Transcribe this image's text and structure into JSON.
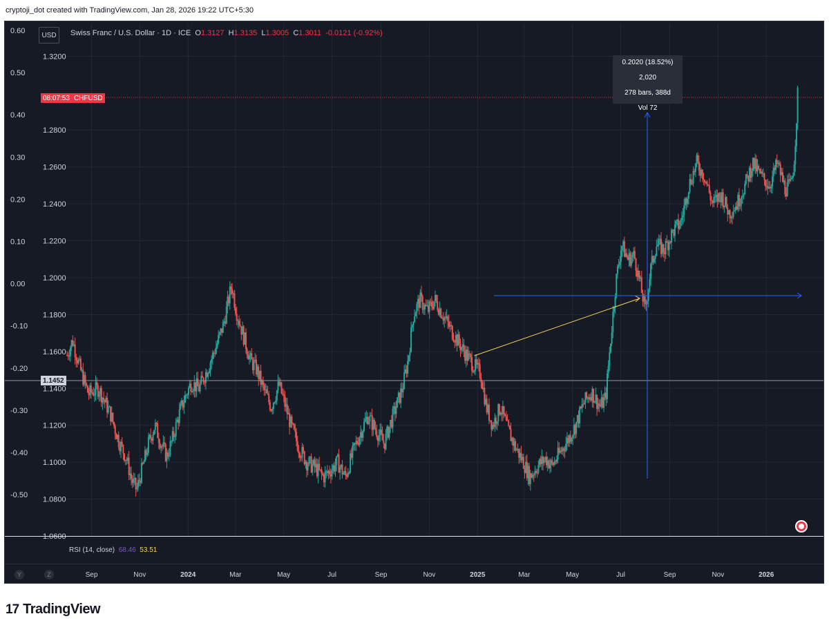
{
  "header": {
    "caption": "cryptoji_dot created with TradingView.com, Jan 28, 2026 19:22 UTC+5:30"
  },
  "legend": {
    "currency": "USD",
    "symbol": "Swiss Franc / U.S. Dollar · 1D · ICE",
    "o_label": "O",
    "open": "1.3127",
    "h_label": "H",
    "high": "1.3135",
    "l_label": "L",
    "low": "1.3005",
    "c_label": "C",
    "close": "1.3011",
    "change": "-0.0121 (-0.92%)"
  },
  "tags": {
    "countdown": "08:07:53",
    "ticker": "CHFUSD",
    "crosshair_price": "1.1452"
  },
  "measure_tooltip": {
    "line1": "0.2020 (18.52%) 2,020",
    "line2": "278 bars, 388d",
    "line3": "Vol 72"
  },
  "rsi_legend": {
    "label": "RSI (14, close)",
    "value1": "68.46",
    "value2": "53.51"
  },
  "time_axis_buttons": [
    "Y",
    "Z"
  ],
  "brand": {
    "logo": "17",
    "name": "TradingView"
  },
  "colors": {
    "background": "#161a25",
    "grid": "#242833",
    "up": "#26a69a",
    "down": "#ef5350",
    "trendline": "#f7d55b",
    "measure": "#2962ff",
    "current_price_line": "#f23645"
  },
  "chart_data": {
    "type": "candlestick",
    "title": "Swiss Franc / U.S. Dollar · 1D · ICE",
    "left_ticks": [
      "0.60",
      "0.50",
      "0.40",
      "0.30",
      "0.20",
      "0.10",
      "0.00",
      "-0.10",
      "-0.20",
      "-0.30",
      "-0.40",
      "-0.50"
    ],
    "left_tick_values": [
      0.6,
      0.5,
      0.4,
      0.3,
      0.2,
      0.1,
      0.0,
      -0.1,
      -0.2,
      -0.3,
      -0.4,
      -0.5
    ],
    "price_ticks": [
      "1.3200",
      "1.2800",
      "1.2600",
      "1.2400",
      "1.2200",
      "1.2000",
      "1.1800",
      "1.1600",
      "1.1400",
      "1.1200",
      "1.1000",
      "1.0800",
      "1.0600"
    ],
    "price_tick_values": [
      1.32,
      1.28,
      1.26,
      1.24,
      1.22,
      1.2,
      1.18,
      1.16,
      1.14,
      1.12,
      1.1,
      1.08,
      1.06
    ],
    "ylim": [
      1.06,
      1.3265
    ],
    "xlim": [
      "2023-08-01",
      "2026-02-10"
    ],
    "time_ticks": [
      {
        "label": "Sep",
        "date": "2023-09-01",
        "bold": false
      },
      {
        "label": "Nov",
        "date": "2023-11-01",
        "bold": false
      },
      {
        "label": "2024",
        "date": "2024-01-01",
        "bold": true
      },
      {
        "label": "Mar",
        "date": "2024-03-01",
        "bold": false
      },
      {
        "label": "May",
        "date": "2024-05-01",
        "bold": false
      },
      {
        "label": "Jul",
        "date": "2024-07-01",
        "bold": false
      },
      {
        "label": "Sep",
        "date": "2024-09-01",
        "bold": false
      },
      {
        "label": "Nov",
        "date": "2024-11-01",
        "bold": false
      },
      {
        "label": "2025",
        "date": "2025-01-01",
        "bold": true
      },
      {
        "label": "Mar",
        "date": "2025-03-01",
        "bold": false
      },
      {
        "label": "May",
        "date": "2025-05-01",
        "bold": false
      },
      {
        "label": "Jul",
        "date": "2025-07-01",
        "bold": false
      },
      {
        "label": "Sep",
        "date": "2025-09-01",
        "bold": false
      },
      {
        "label": "Nov",
        "date": "2025-11-01",
        "bold": false
      },
      {
        "label": "2026",
        "date": "2026-01-01",
        "bold": true
      }
    ],
    "close_path": [
      [
        "2023-08-01",
        1.158
      ],
      [
        "2023-08-08",
        1.166
      ],
      [
        "2023-08-18",
        1.15
      ],
      [
        "2023-08-28",
        1.137
      ],
      [
        "2023-09-10",
        1.14
      ],
      [
        "2023-09-25",
        1.126
      ],
      [
        "2023-10-05",
        1.112
      ],
      [
        "2023-10-15",
        1.102
      ],
      [
        "2023-10-22",
        1.09
      ],
      [
        "2023-10-28",
        1.085
      ],
      [
        "2023-11-05",
        1.098
      ],
      [
        "2023-11-12",
        1.11
      ],
      [
        "2023-11-20",
        1.12
      ],
      [
        "2023-11-28",
        1.11
      ],
      [
        "2023-12-05",
        1.103
      ],
      [
        "2023-12-12",
        1.112
      ],
      [
        "2023-12-20",
        1.125
      ],
      [
        "2023-12-28",
        1.135
      ],
      [
        "2024-01-05",
        1.143
      ],
      [
        "2024-01-15",
        1.14
      ],
      [
        "2024-01-25",
        1.15
      ],
      [
        "2024-02-05",
        1.162
      ],
      [
        "2024-02-15",
        1.175
      ],
      [
        "2024-02-25",
        1.196
      ],
      [
        "2024-03-02",
        1.182
      ],
      [
        "2024-03-10",
        1.17
      ],
      [
        "2024-03-20",
        1.155
      ],
      [
        "2024-03-28",
        1.15
      ],
      [
        "2024-04-05",
        1.14
      ],
      [
        "2024-04-15",
        1.13
      ],
      [
        "2024-04-25",
        1.142
      ],
      [
        "2024-05-02",
        1.132
      ],
      [
        "2024-05-10",
        1.12
      ],
      [
        "2024-05-20",
        1.108
      ],
      [
        "2024-05-30",
        1.1
      ],
      [
        "2024-06-10",
        1.097
      ],
      [
        "2024-06-20",
        1.092
      ],
      [
        "2024-06-30",
        1.096
      ],
      [
        "2024-07-08",
        1.1
      ],
      [
        "2024-07-18",
        1.092
      ],
      [
        "2024-07-28",
        1.106
      ],
      [
        "2024-08-05",
        1.115
      ],
      [
        "2024-08-15",
        1.125
      ],
      [
        "2024-08-25",
        1.118
      ],
      [
        "2024-09-05",
        1.11
      ],
      [
        "2024-09-12",
        1.12
      ],
      [
        "2024-09-20",
        1.13
      ],
      [
        "2024-09-28",
        1.14
      ],
      [
        "2024-10-05",
        1.155
      ],
      [
        "2024-10-12",
        1.18
      ],
      [
        "2024-10-20",
        1.188
      ],
      [
        "2024-10-30",
        1.182
      ],
      [
        "2024-11-08",
        1.188
      ],
      [
        "2024-11-18",
        1.18
      ],
      [
        "2024-11-28",
        1.172
      ],
      [
        "2024-12-08",
        1.165
      ],
      [
        "2024-12-18",
        1.158
      ],
      [
        "2024-12-28",
        1.152
      ],
      [
        "2025-01-05",
        1.148
      ],
      [
        "2025-01-12",
        1.13
      ],
      [
        "2025-01-20",
        1.12
      ],
      [
        "2025-01-30",
        1.13
      ],
      [
        "2025-02-08",
        1.118
      ],
      [
        "2025-02-18",
        1.108
      ],
      [
        "2025-02-28",
        1.1
      ],
      [
        "2025-03-08",
        1.092
      ],
      [
        "2025-03-18",
        1.098
      ],
      [
        "2025-03-28",
        1.102
      ],
      [
        "2025-04-05",
        1.098
      ],
      [
        "2025-04-15",
        1.105
      ],
      [
        "2025-04-25",
        1.112
      ],
      [
        "2025-05-05",
        1.12
      ],
      [
        "2025-05-15",
        1.132
      ],
      [
        "2025-05-25",
        1.138
      ],
      [
        "2025-06-05",
        1.13
      ],
      [
        "2025-06-12",
        1.135
      ],
      [
        "2025-06-18",
        1.165
      ],
      [
        "2025-06-25",
        1.198
      ],
      [
        "2025-07-02",
        1.218
      ],
      [
        "2025-07-10",
        1.21
      ],
      [
        "2025-07-18",
        1.212
      ],
      [
        "2025-07-25",
        1.198
      ],
      [
        "2025-08-01",
        1.182
      ],
      [
        "2025-08-08",
        1.205
      ],
      [
        "2025-08-15",
        1.218
      ],
      [
        "2025-08-25",
        1.215
      ],
      [
        "2025-09-05",
        1.225
      ],
      [
        "2025-09-15",
        1.23
      ],
      [
        "2025-09-25",
        1.25
      ],
      [
        "2025-10-05",
        1.262
      ],
      [
        "2025-10-15",
        1.255
      ],
      [
        "2025-10-25",
        1.24
      ],
      [
        "2025-11-05",
        1.245
      ],
      [
        "2025-11-15",
        1.235
      ],
      [
        "2025-11-25",
        1.24
      ],
      [
        "2025-12-05",
        1.25
      ],
      [
        "2025-12-15",
        1.262
      ],
      [
        "2025-12-25",
        1.255
      ],
      [
        "2026-01-05",
        1.25
      ],
      [
        "2026-01-15",
        1.262
      ],
      [
        "2026-01-25",
        1.248
      ],
      [
        "2026-02-01",
        1.25
      ],
      [
        "2026-02-05",
        1.262
      ],
      [
        "2026-02-08",
        1.285
      ],
      [
        "2026-02-10",
        1.302
      ]
    ],
    "current_price": 1.3011,
    "crosshair_price": 1.1452,
    "trendline": {
      "from": [
        "2024-12-28",
        1.1585
      ],
      "to": [
        "2025-07-25",
        1.1905
      ]
    },
    "measure": {
      "x": "2025-08-01",
      "y_from": 1.0905,
      "y_to": 1.296,
      "h_from": "2025-06-05",
      "h_to": "2026-02-10",
      "h_y": 1.1925
    },
    "rsi_values": [
      68.46,
      53.51
    ]
  }
}
